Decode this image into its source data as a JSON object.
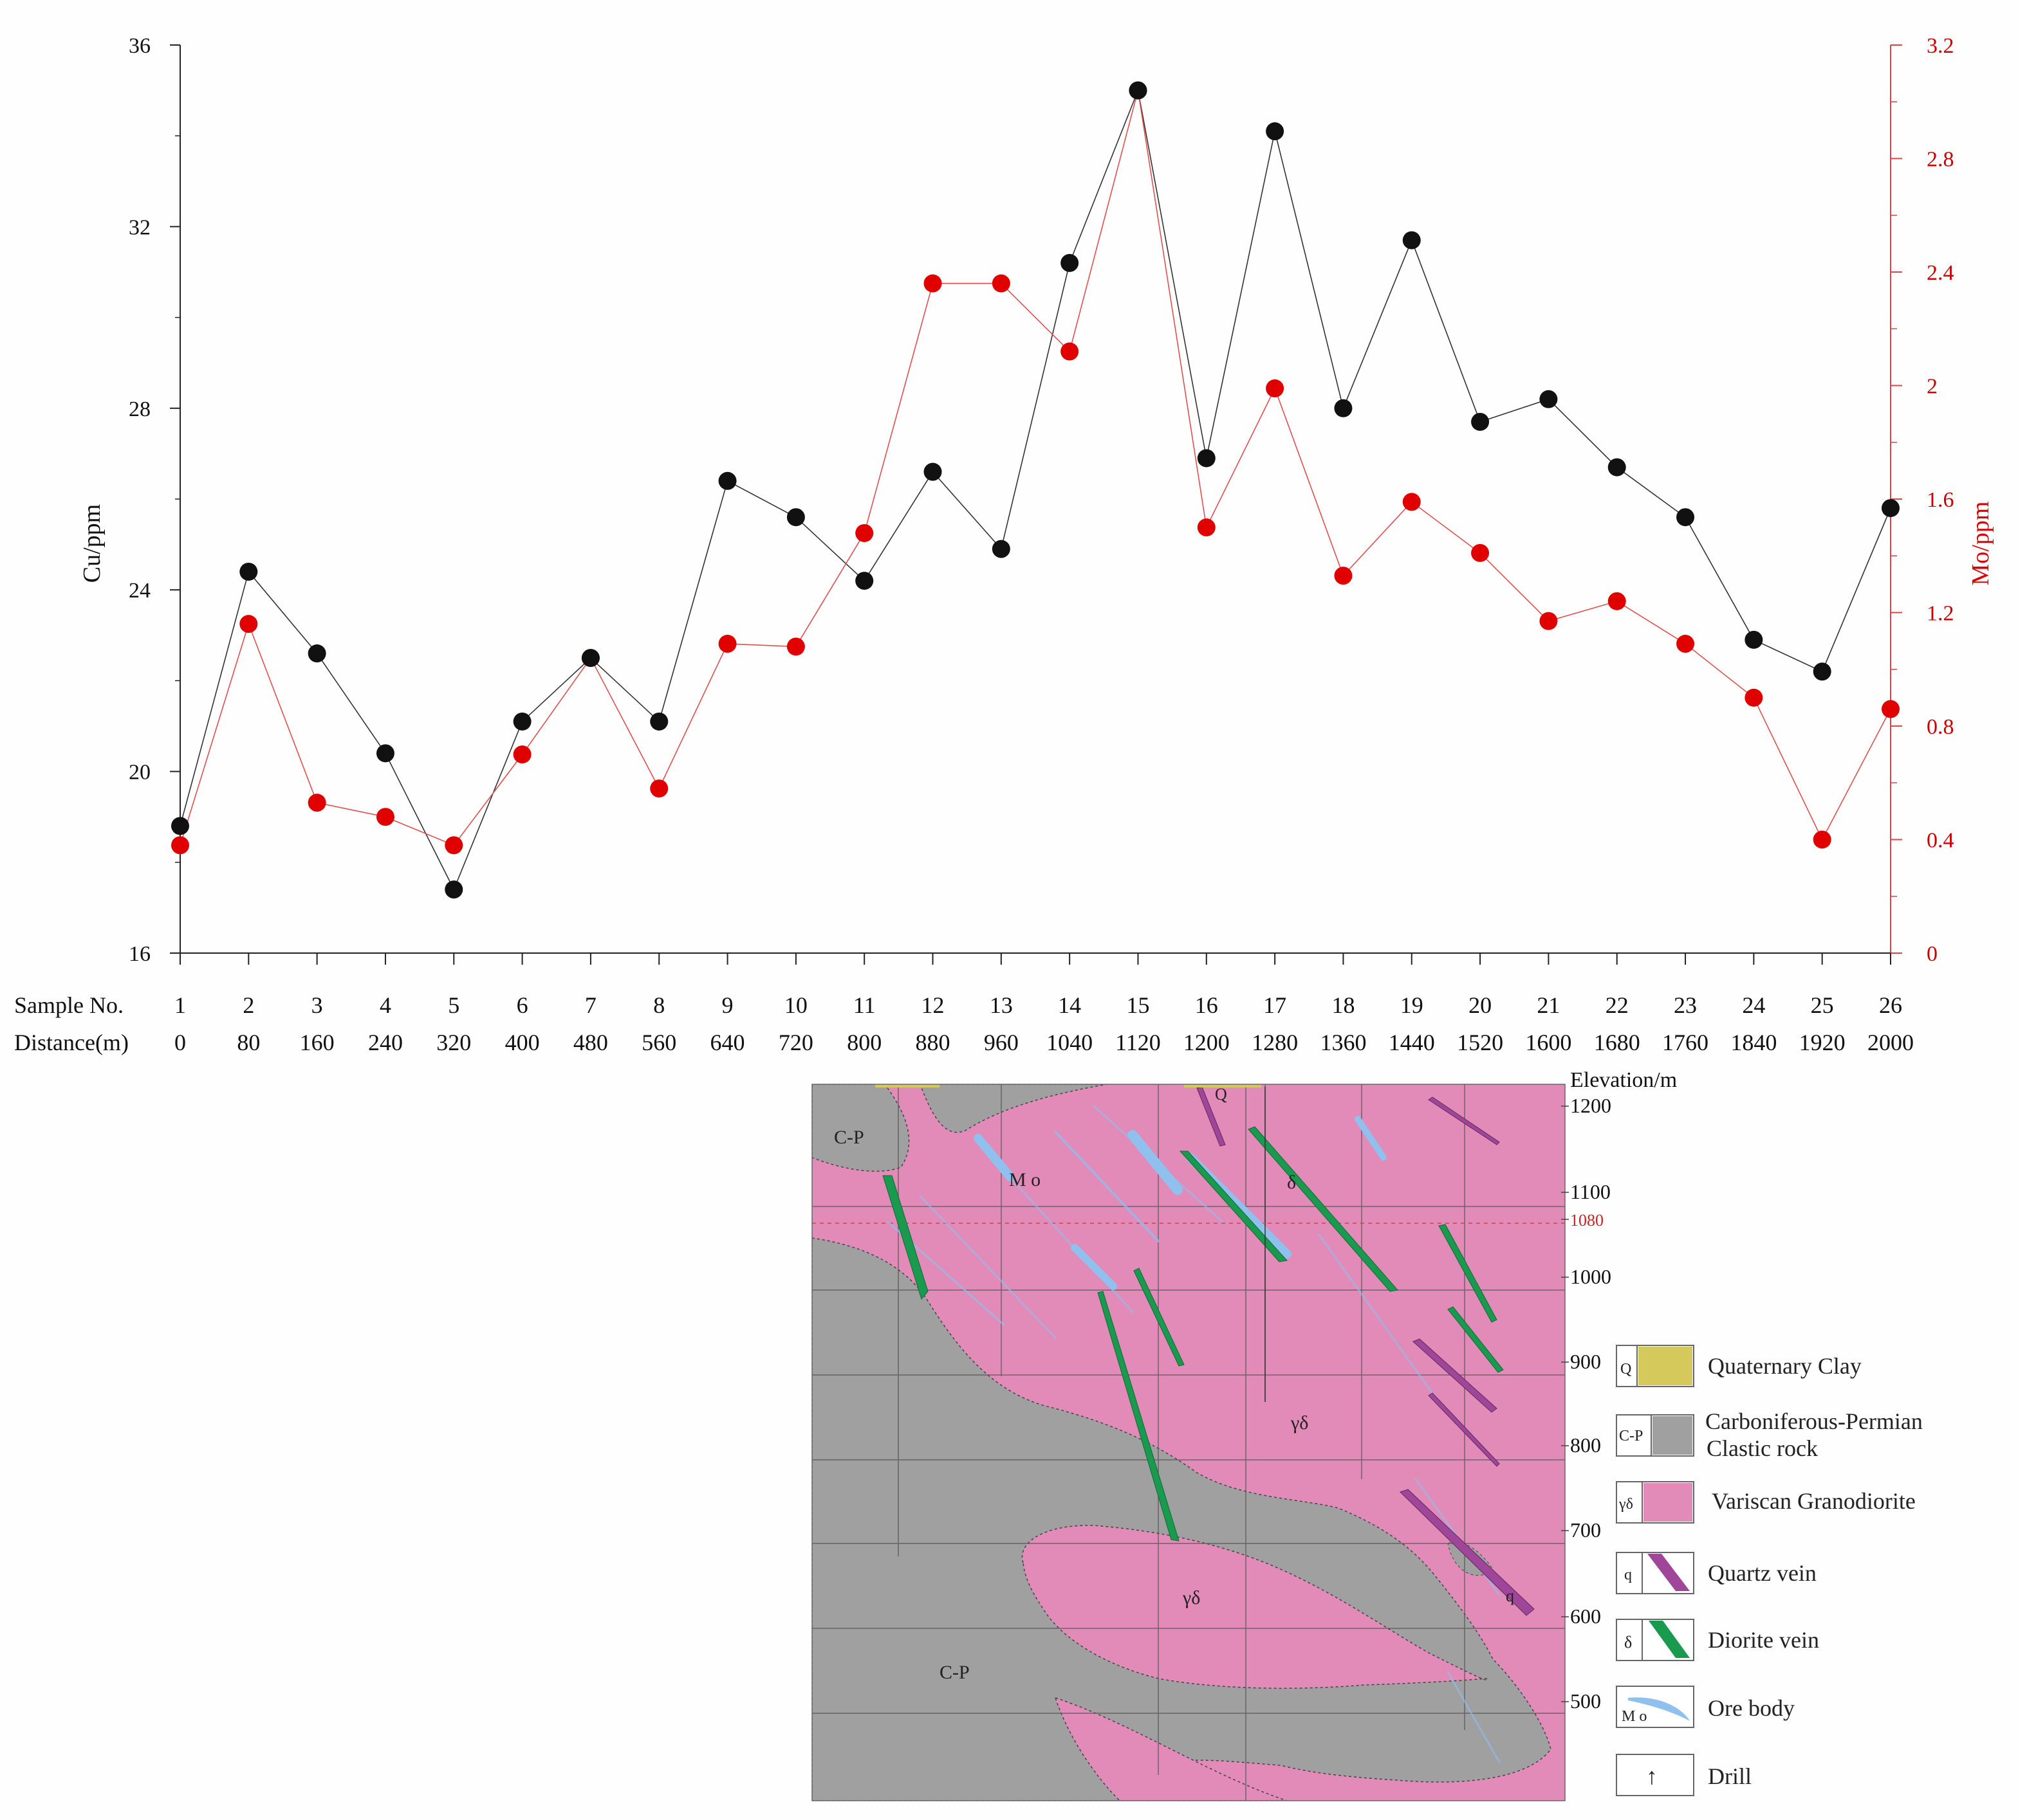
{
  "chart_data": {
    "type": "line",
    "title": "",
    "xlabel": "Sample No. / Distance(m)",
    "row_labels": {
      "sample": "Sample No.",
      "distance": "Distance(m)"
    },
    "categories": [
      "1",
      "2",
      "3",
      "4",
      "5",
      "6",
      "7",
      "8",
      "9",
      "10",
      "11",
      "12",
      "13",
      "14",
      "15",
      "16",
      "17",
      "18",
      "19",
      "20",
      "21",
      "22",
      "23",
      "24",
      "25",
      "26"
    ],
    "distances": [
      "0",
      "80",
      "160",
      "240",
      "320",
      "400",
      "480",
      "560",
      "640",
      "720",
      "800",
      "880",
      "960",
      "1040",
      "1120",
      "1200",
      "1280",
      "1360",
      "1440",
      "1520",
      "1600",
      "1680",
      "1760",
      "1840",
      "1920",
      "2000"
    ],
    "left_axis": {
      "label": "Cu/ppm",
      "min": 16,
      "max": 36,
      "ticks": [
        "16",
        "20",
        "24",
        "28",
        "32",
        "36"
      ]
    },
    "right_axis": {
      "label": "Mo/ppm",
      "min": 0,
      "max": 3.2,
      "ticks": [
        "0",
        "0.4",
        "0.8",
        "1.2",
        "1.6",
        "2",
        "2.4",
        "2.8",
        "3.2"
      ]
    },
    "series": [
      {
        "name": "Cu",
        "axis": "left",
        "color": "#111111",
        "values": [
          18.8,
          24.4,
          22.6,
          20.4,
          17.4,
          21.1,
          22.5,
          21.1,
          26.4,
          25.6,
          24.2,
          26.6,
          24.9,
          31.2,
          35.0,
          26.9,
          34.1,
          28.0,
          31.7,
          27.7,
          28.2,
          26.7,
          25.6,
          22.9,
          22.2,
          25.8
        ]
      },
      {
        "name": "Mo",
        "axis": "right",
        "color": "#e00000",
        "values": [
          0.38,
          1.16,
          0.53,
          0.48,
          0.38,
          0.7,
          1.04,
          0.58,
          1.09,
          1.08,
          1.48,
          2.36,
          2.36,
          2.12,
          3.04,
          1.5,
          1.99,
          1.33,
          1.59,
          1.41,
          1.17,
          1.24,
          1.09,
          0.9,
          0.4,
          0.86
        ]
      }
    ]
  },
  "section": {
    "elevation_title": "Elevation/m",
    "elevation_ticks": [
      "1200",
      "1100",
      "1080",
      "1000",
      "900",
      "800",
      "700",
      "600",
      "500"
    ],
    "labels": {
      "cp_top": "C-P",
      "cp_bottom": "C-P",
      "mo": "M o",
      "delta": "δ",
      "gd_upper": "γδ",
      "gd_lower": "γδ",
      "q_top": "Q",
      "q_vein": "q"
    },
    "colors": {
      "granodiorite": "#e28ab8",
      "clastic": "#a0a0a0",
      "clay": "#d4c95a",
      "quartz": "#a0469a",
      "diorite": "#1a9a4e",
      "ore": "#8fc0ee"
    }
  },
  "legend": [
    {
      "code": "Q",
      "label": "Quaternary Clay"
    },
    {
      "code": "C-P",
      "label": "Carboniferous-Permian",
      "label2": "Clastic rock"
    },
    {
      "code": "γδ",
      "label": "Variscan Granodiorite"
    },
    {
      "code": "q",
      "label": "Quartz vein"
    },
    {
      "code": "δ",
      "label": "Diorite vein"
    },
    {
      "code": "M o",
      "label": "Ore body"
    },
    {
      "code": "↑",
      "label": "Drill"
    }
  ]
}
